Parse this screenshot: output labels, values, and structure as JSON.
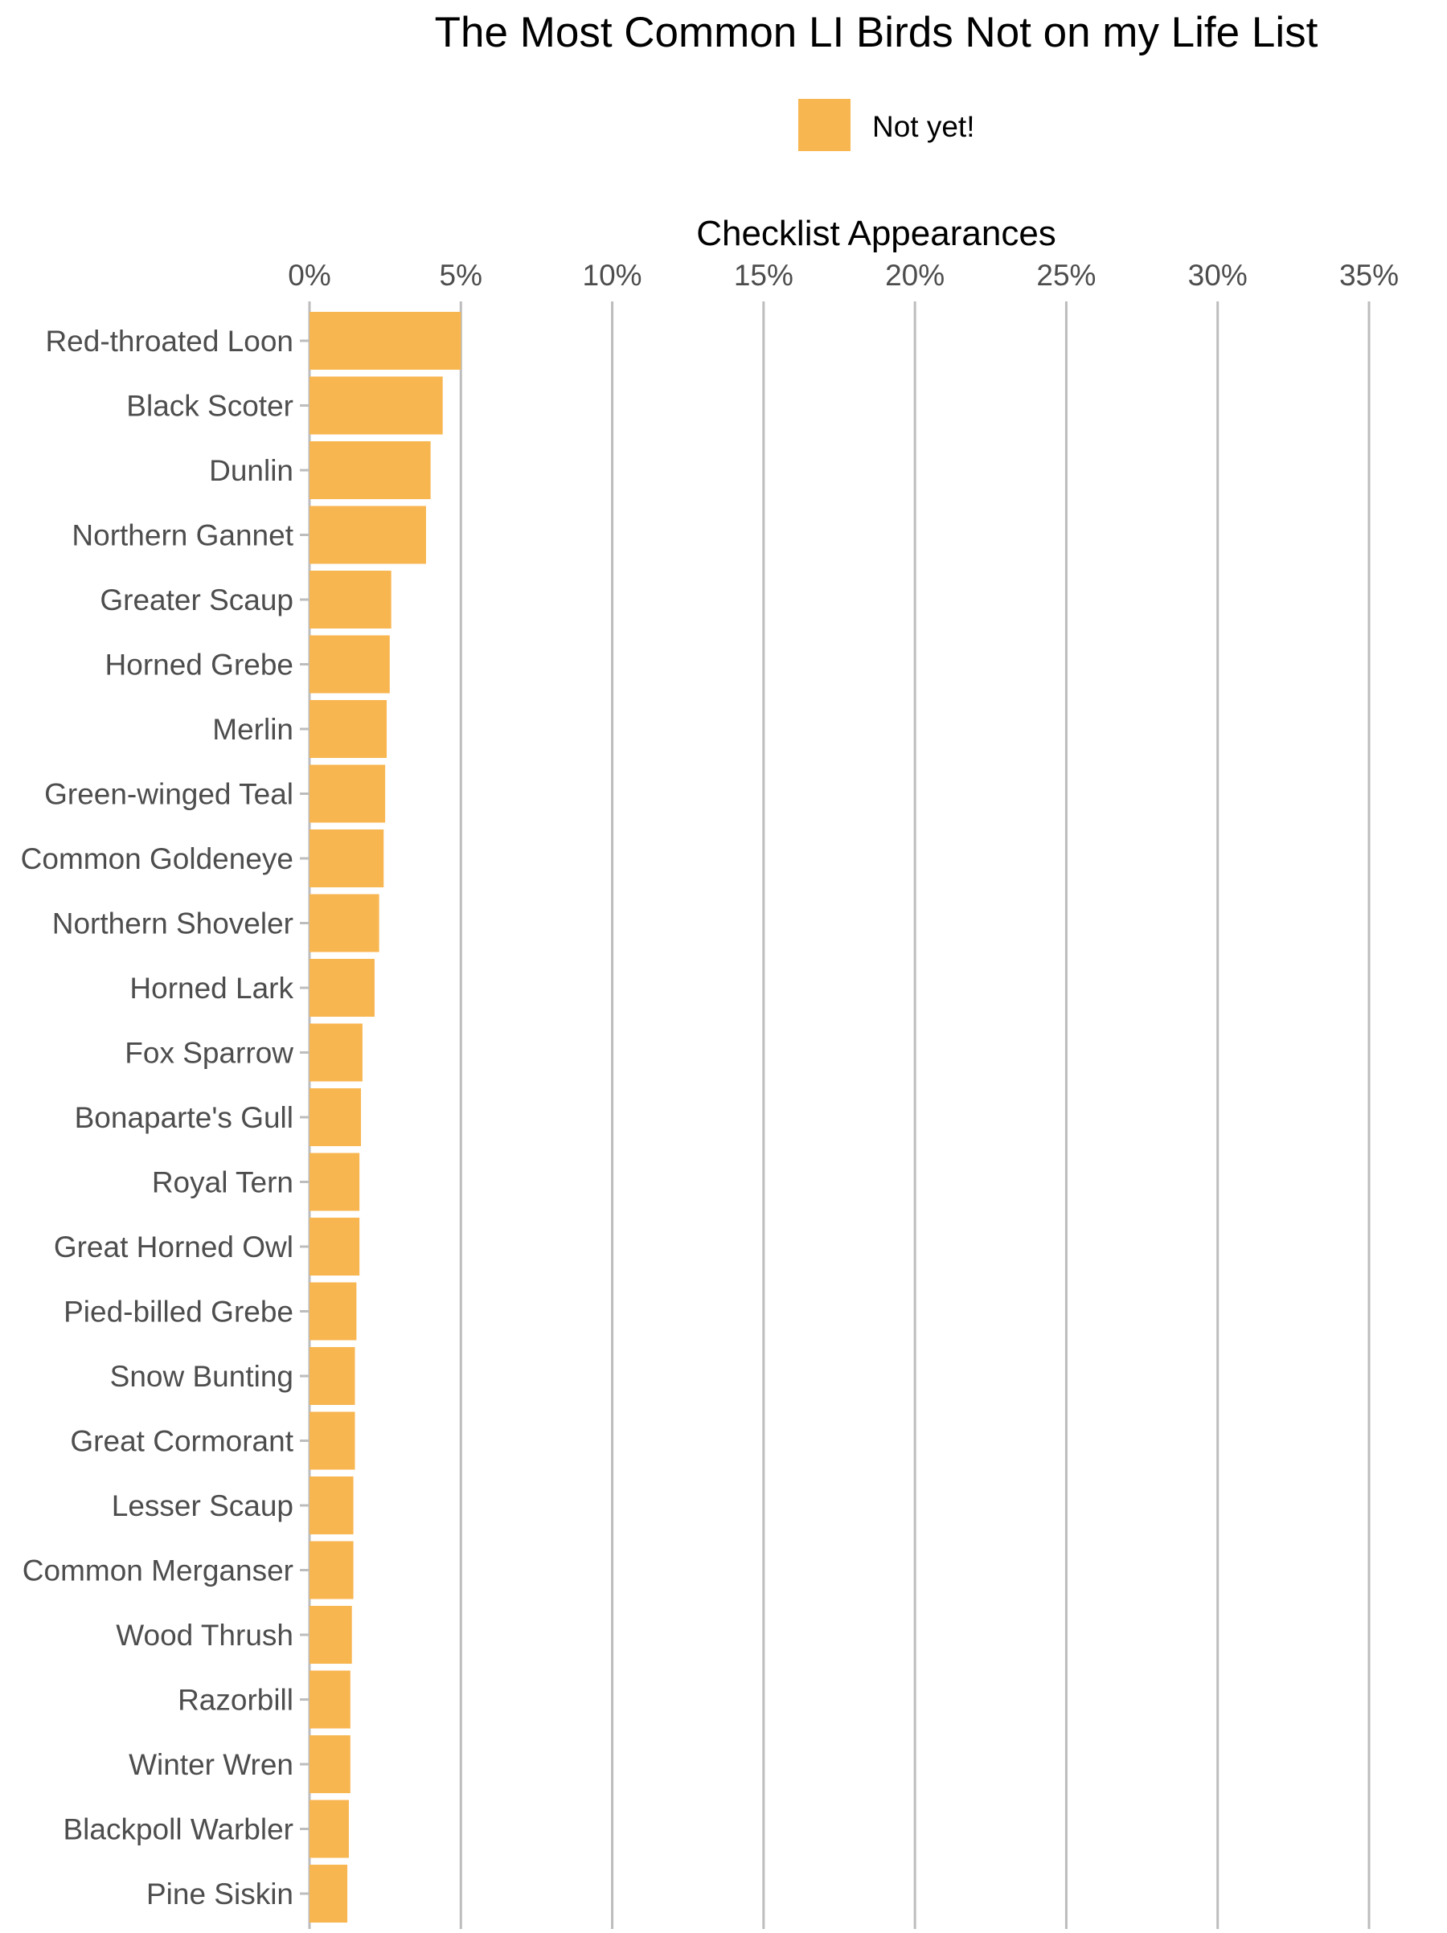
{
  "chart_data": {
    "type": "bar",
    "orientation": "horizontal",
    "title": "The Most Common LI Birds Not on my Life List",
    "xlabel": "Checklist Appearances",
    "ylabel": "",
    "xlim": [
      0,
      35
    ],
    "x_ticks": [
      "0%",
      "5%",
      "10%",
      "15%",
      "20%",
      "25%",
      "30%",
      "35%"
    ],
    "tick_values": [
      0,
      5,
      10,
      15,
      20,
      25,
      30,
      35
    ],
    "value_unit": "%",
    "x_axis_position": "top",
    "grid": "vertical major lines",
    "legend": {
      "placement": "top",
      "entries": [
        {
          "label": "Not yet!",
          "color": "#F8B651"
        }
      ]
    },
    "categories": [
      "Red-throated Loon",
      "Black Scoter",
      "Dunlin",
      "Northern Gannet",
      "Greater Scaup",
      "Horned Grebe",
      "Merlin",
      "Green-winged Teal",
      "Common Goldeneye",
      "Northern Shoveler",
      "Horned Lark",
      "Fox Sparrow",
      "Bonaparte's Gull",
      "Royal Tern",
      "Great Horned Owl",
      "Pied-billed Grebe",
      "Snow Bunting",
      "Great Cormorant",
      "Lesser Scaup",
      "Common Merganser",
      "Wood Thrush",
      "Razorbill",
      "Winter Wren",
      "Blackpoll Warbler",
      "Pine Siskin"
    ],
    "series": [
      {
        "name": "Not yet!",
        "color": "#F8B651",
        "values": [
          5.0,
          4.4,
          4.0,
          3.85,
          2.7,
          2.65,
          2.55,
          2.5,
          2.45,
          2.3,
          2.15,
          1.75,
          1.7,
          1.65,
          1.65,
          1.55,
          1.5,
          1.5,
          1.45,
          1.45,
          1.4,
          1.35,
          1.35,
          1.3,
          1.25
        ]
      }
    ]
  },
  "colors": {
    "bar": "#F8B651",
    "gridline": "#bdbdbd",
    "tick_text": "#4d4d4d",
    "title_text": "#000000"
  }
}
